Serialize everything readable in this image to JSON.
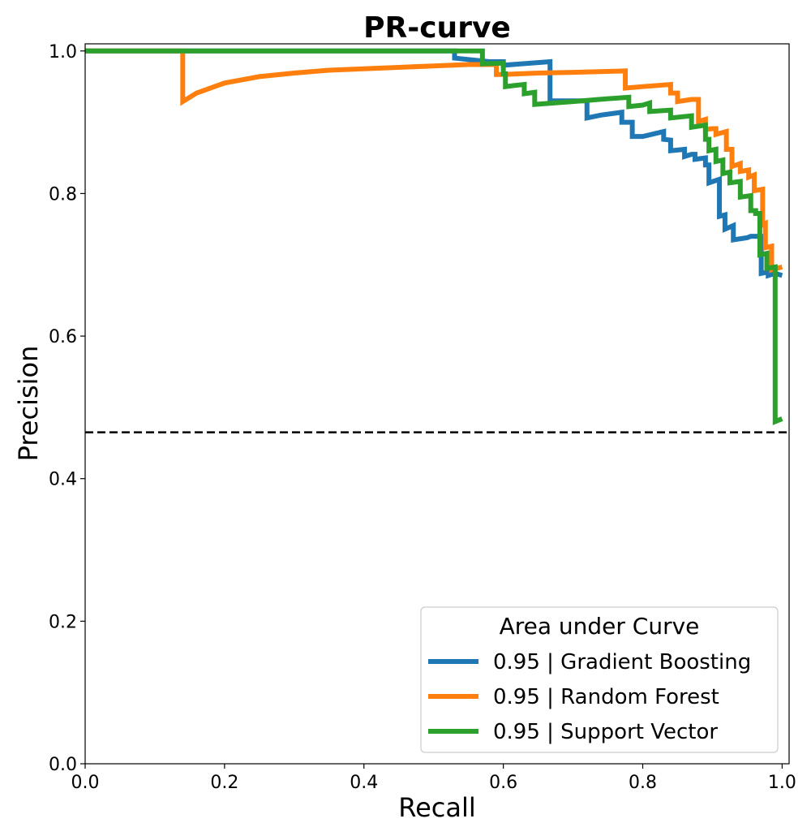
{
  "chart_data": {
    "type": "line",
    "title": "PR-curve",
    "xlabel": "Recall",
    "ylabel": "Precision",
    "xlim": [
      0.0,
      1.01
    ],
    "ylim": [
      0.0,
      1.01
    ],
    "xticks": [
      "0.0",
      "0.2",
      "0.4",
      "0.6",
      "0.8",
      "1.0"
    ],
    "yticks": [
      "0.0",
      "0.2",
      "0.4",
      "0.6",
      "0.8",
      "1.0"
    ],
    "grid": false,
    "baseline": 0.465,
    "legend": {
      "title": "Area under Curve",
      "placement": "lower-right",
      "entries": [
        "0.95 | Gradient Boosting",
        "0.95 | Random Forest",
        "0.95 | Support Vector"
      ]
    },
    "series": [
      {
        "name": "0.95 | Gradient Boosting",
        "color": "#1f77b4",
        "points": [
          [
            0.0,
            1.0
          ],
          [
            0.53,
            1.0
          ],
          [
            0.53,
            0.99
          ],
          [
            0.58,
            0.985
          ],
          [
            0.6,
            0.985
          ],
          [
            0.6,
            0.98
          ],
          [
            0.667,
            0.985
          ],
          [
            0.667,
            0.93
          ],
          [
            0.72,
            0.93
          ],
          [
            0.72,
            0.906
          ],
          [
            0.74,
            0.91
          ],
          [
            0.77,
            0.914
          ],
          [
            0.77,
            0.9
          ],
          [
            0.785,
            0.9
          ],
          [
            0.785,
            0.88
          ],
          [
            0.8,
            0.88
          ],
          [
            0.83,
            0.887
          ],
          [
            0.83,
            0.876
          ],
          [
            0.84,
            0.875
          ],
          [
            0.84,
            0.86
          ],
          [
            0.86,
            0.862
          ],
          [
            0.86,
            0.852
          ],
          [
            0.87,
            0.855
          ],
          [
            0.875,
            0.855
          ],
          [
            0.875,
            0.848
          ],
          [
            0.89,
            0.85
          ],
          [
            0.89,
            0.84
          ],
          [
            0.895,
            0.84
          ],
          [
            0.895,
            0.815
          ],
          [
            0.91,
            0.82
          ],
          [
            0.91,
            0.768
          ],
          [
            0.918,
            0.77
          ],
          [
            0.918,
            0.75
          ],
          [
            0.93,
            0.755
          ],
          [
            0.93,
            0.735
          ],
          [
            0.95,
            0.738
          ],
          [
            0.955,
            0.74
          ],
          [
            0.97,
            0.74
          ],
          [
            0.97,
            0.688
          ],
          [
            0.98,
            0.69
          ],
          [
            0.98,
            0.685
          ],
          [
            0.99,
            0.688
          ],
          [
            1.0,
            0.685
          ]
        ]
      },
      {
        "name": "0.95 | Random Forest",
        "color": "#ff7f0e",
        "points": [
          [
            0.0,
            1.0
          ],
          [
            0.14,
            1.0
          ],
          [
            0.14,
            0.929
          ],
          [
            0.16,
            0.941
          ],
          [
            0.2,
            0.955
          ],
          [
            0.25,
            0.964
          ],
          [
            0.3,
            0.969
          ],
          [
            0.35,
            0.973
          ],
          [
            0.4,
            0.975
          ],
          [
            0.45,
            0.977
          ],
          [
            0.5,
            0.979
          ],
          [
            0.55,
            0.981
          ],
          [
            0.59,
            0.981
          ],
          [
            0.59,
            0.967
          ],
          [
            0.6,
            0.967
          ],
          [
            0.65,
            0.969
          ],
          [
            0.7,
            0.97
          ],
          [
            0.775,
            0.972
          ],
          [
            0.775,
            0.948
          ],
          [
            0.8,
            0.95
          ],
          [
            0.84,
            0.953
          ],
          [
            0.84,
            0.941
          ],
          [
            0.85,
            0.941
          ],
          [
            0.85,
            0.929
          ],
          [
            0.87,
            0.932
          ],
          [
            0.88,
            0.932
          ],
          [
            0.88,
            0.901
          ],
          [
            0.89,
            0.904
          ],
          [
            0.89,
            0.89
          ],
          [
            0.9,
            0.891
          ],
          [
            0.905,
            0.891
          ],
          [
            0.905,
            0.883
          ],
          [
            0.92,
            0.887
          ],
          [
            0.92,
            0.862
          ],
          [
            0.928,
            0.862
          ],
          [
            0.928,
            0.838
          ],
          [
            0.94,
            0.842
          ],
          [
            0.94,
            0.831
          ],
          [
            0.952,
            0.833
          ],
          [
            0.952,
            0.823
          ],
          [
            0.96,
            0.826
          ],
          [
            0.96,
            0.804
          ],
          [
            0.972,
            0.806
          ],
          [
            0.972,
            0.756
          ],
          [
            0.976,
            0.758
          ],
          [
            0.976,
            0.724
          ],
          [
            0.985,
            0.726
          ],
          [
            0.985,
            0.693
          ],
          [
            1.0,
            0.697
          ]
        ]
      },
      {
        "name": "0.95 | Support Vector",
        "color": "#2ca02c",
        "points": [
          [
            0.0,
            1.0
          ],
          [
            0.57,
            1.0
          ],
          [
            0.57,
            0.982
          ],
          [
            0.6,
            0.983
          ],
          [
            0.6,
            0.968
          ],
          [
            0.603,
            0.968
          ],
          [
            0.603,
            0.95
          ],
          [
            0.62,
            0.952
          ],
          [
            0.63,
            0.953
          ],
          [
            0.63,
            0.94
          ],
          [
            0.645,
            0.942
          ],
          [
            0.645,
            0.925
          ],
          [
            0.7,
            0.929
          ],
          [
            0.75,
            0.933
          ],
          [
            0.78,
            0.935
          ],
          [
            0.78,
            0.922
          ],
          [
            0.8,
            0.924
          ],
          [
            0.81,
            0.927
          ],
          [
            0.81,
            0.915
          ],
          [
            0.84,
            0.917
          ],
          [
            0.84,
            0.906
          ],
          [
            0.87,
            0.909
          ],
          [
            0.87,
            0.893
          ],
          [
            0.89,
            0.896
          ],
          [
            0.89,
            0.876
          ],
          [
            0.895,
            0.876
          ],
          [
            0.895,
            0.86
          ],
          [
            0.905,
            0.862
          ],
          [
            0.905,
            0.845
          ],
          [
            0.915,
            0.847
          ],
          [
            0.915,
            0.828
          ],
          [
            0.925,
            0.83
          ],
          [
            0.925,
            0.815
          ],
          [
            0.94,
            0.817
          ],
          [
            0.94,
            0.795
          ],
          [
            0.955,
            0.797
          ],
          [
            0.955,
            0.776
          ],
          [
            0.962,
            0.776
          ],
          [
            0.962,
            0.772
          ],
          [
            0.968,
            0.772
          ],
          [
            0.968,
            0.714
          ],
          [
            0.978,
            0.716
          ],
          [
            0.978,
            0.695
          ],
          [
            0.99,
            0.697
          ],
          [
            0.99,
            0.48
          ],
          [
            1.0,
            0.484
          ]
        ]
      }
    ]
  }
}
